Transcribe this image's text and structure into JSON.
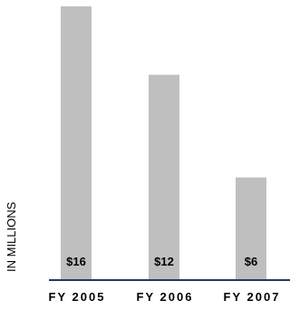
{
  "chart_data": {
    "type": "bar",
    "categories": [
      "FY 2005",
      "FY 2006",
      "FY 2007"
    ],
    "values": [
      16,
      12,
      6
    ],
    "value_labels": [
      "$16",
      "$12",
      "$6"
    ],
    "title": "",
    "xlabel": "",
    "ylabel": "IN  MILLIONS",
    "ylim": [
      0,
      17
    ],
    "grid": false,
    "legend": "none",
    "colors": {
      "bar": "#bfbfbf",
      "axis": "#1f3a6b",
      "text": "#000000"
    }
  }
}
